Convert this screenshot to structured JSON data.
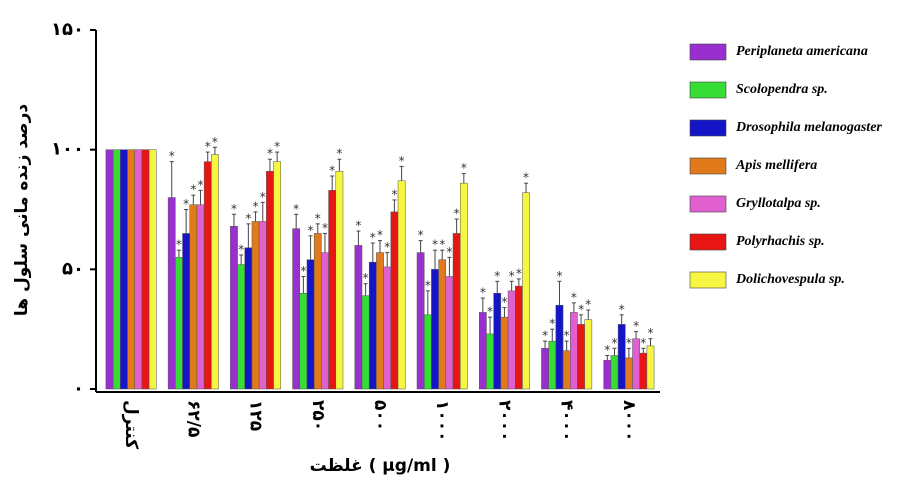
{
  "chart_data": {
    "type": "bar",
    "y_label": "درصد زنده مانی سلول ها",
    "x_label": "غلظت ( µg/ml )",
    "categories": [
      "کنترل",
      "۶۲/۵",
      "۱۲۵",
      "۲۵۰",
      "۵۰۰",
      "۱۰۰۰",
      "۲۰۰۰",
      "۴۰۰۰",
      "۸۰۰۰"
    ],
    "significance_mark": "*",
    "ylim": [
      0,
      150
    ],
    "yticks": [
      {
        "value": 0,
        "label": "۰"
      },
      {
        "value": 50,
        "label": "۵۰"
      },
      {
        "value": 100,
        "label": "۱۰۰"
      },
      {
        "value": 150,
        "label": "۱۵۰"
      }
    ],
    "series": [
      {
        "name": "Periplaneta americana",
        "color": "#9a2fd0",
        "values": [
          100,
          80,
          68,
          67,
          60,
          57,
          32,
          17,
          12
        ],
        "errors": [
          0,
          15,
          5,
          6,
          6,
          5,
          6,
          3,
          2
        ]
      },
      {
        "name": "Scolopendra sp.",
        "color": "#35dd35",
        "values": [
          100,
          55,
          52,
          40,
          39,
          31,
          23,
          20,
          14
        ],
        "errors": [
          0,
          3,
          4,
          7,
          5,
          10,
          7,
          5,
          3
        ]
      },
      {
        "name": "Drosophila melanogaster",
        "color": "#1515c8",
        "values": [
          100,
          65,
          59,
          54,
          53,
          50,
          40,
          35,
          27
        ],
        "errors": [
          0,
          10,
          10,
          10,
          8,
          8,
          5,
          10,
          4
        ]
      },
      {
        "name": "Apis mellifera",
        "color": "#e07a1a",
        "values": [
          100,
          77,
          70,
          65,
          57,
          54,
          30,
          16,
          13
        ],
        "errors": [
          0,
          4,
          4,
          4,
          5,
          4,
          4,
          4,
          4
        ]
      },
      {
        "name": "Gryllotalpa sp.",
        "color": "#e060d0",
        "values": [
          100,
          77,
          70,
          57,
          51,
          47,
          41,
          32,
          21
        ],
        "errors": [
          0,
          6,
          8,
          8,
          6,
          8,
          4,
          4,
          3
        ]
      },
      {
        "name": "Polyrhachis sp.",
        "color": "#e81515",
        "values": [
          100,
          95,
          91,
          83,
          74,
          65,
          43,
          27,
          15
        ],
        "errors": [
          0,
          4,
          5,
          6,
          5,
          6,
          3,
          4,
          2
        ]
      },
      {
        "name": "Dolichovespula sp.",
        "color": "#f5f542",
        "values": [
          100,
          98,
          95,
          91,
          87,
          86,
          82,
          29,
          18
        ],
        "errors": [
          0,
          3,
          4,
          5,
          6,
          4,
          4,
          4,
          3
        ]
      }
    ]
  }
}
